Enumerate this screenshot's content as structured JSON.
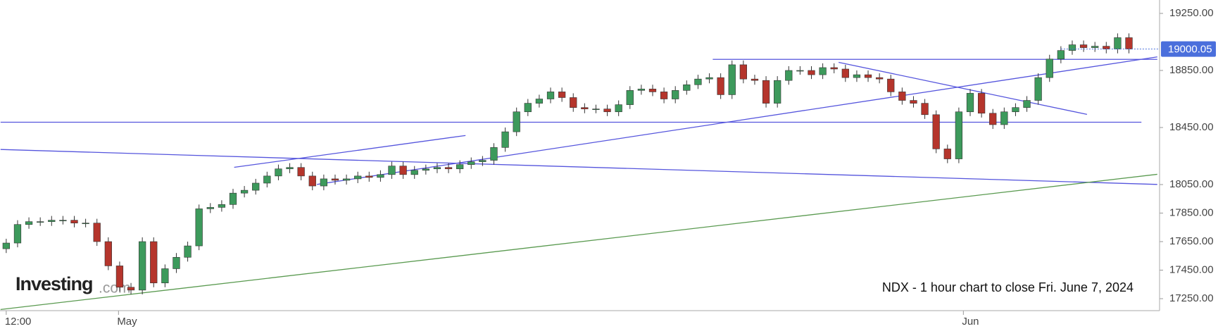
{
  "chart_data": {
    "type": "candlestick",
    "annotation": "NDX - 1 hour chart to close Fri. June 7, 2024",
    "logo": {
      "name": "Investing",
      "suffix": ".com"
    },
    "xlim": [
      -0.55,
      101.7
    ],
    "xticks": [
      {
        "value": 0,
        "label": "12:00"
      },
      {
        "value": 9.9,
        "label": "May"
      },
      {
        "value": 84.4,
        "label": "Jun"
      }
    ],
    "ylim": [
      17166,
      19344
    ],
    "yticks": [
      {
        "value": 17250,
        "label": "17250.00"
      },
      {
        "value": 17450,
        "label": "17450.00"
      },
      {
        "value": 17650,
        "label": "17650.00"
      },
      {
        "value": 17850,
        "label": "17850.00"
      },
      {
        "value": 18050,
        "label": "18050.00"
      },
      {
        "value": 18450,
        "label": "18450.00"
      },
      {
        "value": 18850,
        "label": "18850.00"
      },
      {
        "value": 19250,
        "label": "19250.00"
      }
    ],
    "last_price": 19000.05,
    "last_price_color": "#4a6fdc",
    "series": {
      "up_color": "#3d9a5c",
      "down_color": "#b5352c",
      "open": [
        17600,
        17640,
        17770,
        17790,
        17790,
        17800,
        17800,
        17780,
        17780,
        17650,
        17480,
        17330,
        17310,
        17650,
        17360,
        17460,
        17540,
        17620,
        17880,
        17890,
        17910,
        17990,
        18010,
        18060,
        18110,
        18160,
        18170,
        18110,
        18040,
        18090,
        18080,
        18090,
        18110,
        18100,
        18120,
        18180,
        18120,
        18150,
        18160,
        18170,
        18160,
        18190,
        18210,
        18220,
        18310,
        18420,
        18560,
        18620,
        18650,
        18700,
        18660,
        18590,
        18580,
        18580,
        18560,
        18610,
        18710,
        18720,
        18700,
        18650,
        18710,
        18750,
        18790,
        18800,
        18680,
        18890,
        18790,
        18780,
        18620,
        18780,
        18850,
        18850,
        18820,
        18870,
        18860,
        18800,
        18820,
        18800,
        18790,
        18700,
        18640,
        18620,
        18540,
        18300,
        18230,
        18560,
        18690,
        18550,
        18470,
        18560,
        18590,
        18640,
        18800,
        18930,
        18990,
        19030,
        19010,
        19020,
        19000,
        19080
      ],
      "high": [
        17670,
        17800,
        17820,
        17820,
        17830,
        17830,
        17830,
        17810,
        17810,
        17680,
        17510,
        17360,
        17680,
        17680,
        17490,
        17570,
        17650,
        17910,
        17920,
        17940,
        18020,
        18040,
        18090,
        18140,
        18190,
        18200,
        18200,
        18140,
        18120,
        18120,
        18120,
        18140,
        18140,
        18150,
        18210,
        18210,
        18180,
        18190,
        18200,
        18200,
        18220,
        18240,
        18250,
        18340,
        18450,
        18590,
        18650,
        18680,
        18730,
        18730,
        18690,
        18620,
        18610,
        18610,
        18640,
        18740,
        18750,
        18750,
        18730,
        18740,
        18780,
        18820,
        18830,
        18830,
        18920,
        18920,
        18820,
        18810,
        18810,
        18880,
        18880,
        18880,
        18900,
        18900,
        18890,
        18850,
        18850,
        18830,
        18820,
        18730,
        18670,
        18650,
        18570,
        18330,
        18590,
        18720,
        18720,
        18580,
        18590,
        18620,
        18670,
        18830,
        18960,
        19020,
        19060,
        19060,
        19050,
        19050,
        19110,
        19110
      ],
      "low": [
        17570,
        17610,
        17740,
        17760,
        17760,
        17770,
        17750,
        17750,
        17620,
        17450,
        17300,
        17280,
        17280,
        17330,
        17330,
        17430,
        17510,
        17590,
        17850,
        17860,
        17880,
        17960,
        17980,
        18030,
        18080,
        18130,
        18080,
        18010,
        18010,
        18050,
        18050,
        18060,
        18070,
        18070,
        18090,
        18090,
        18090,
        18120,
        18130,
        18130,
        18130,
        18160,
        18180,
        18190,
        18280,
        18390,
        18530,
        18590,
        18620,
        18630,
        18560,
        18550,
        18550,
        18530,
        18530,
        18580,
        18680,
        18670,
        18620,
        18620,
        18680,
        18720,
        18760,
        18650,
        18650,
        18760,
        18750,
        18590,
        18590,
        18750,
        18820,
        18790,
        18790,
        18830,
        18770,
        18770,
        18770,
        18760,
        18670,
        18610,
        18590,
        18510,
        18270,
        18200,
        18200,
        18530,
        18520,
        18440,
        18440,
        18530,
        18560,
        18610,
        18770,
        18900,
        18960,
        18980,
        18980,
        18970,
        18970,
        18970
      ],
      "close": [
        17640,
        17770,
        17790,
        17790,
        17800,
        17800,
        17780,
        17780,
        17650,
        17480,
        17330,
        17310,
        17650,
        17360,
        17460,
        17540,
        17620,
        17880,
        17890,
        17910,
        17990,
        18010,
        18060,
        18110,
        18160,
        18170,
        18110,
        18040,
        18090,
        18080,
        18090,
        18110,
        18100,
        18120,
        18180,
        18120,
        18150,
        18160,
        18170,
        18160,
        18190,
        18210,
        18220,
        18310,
        18420,
        18560,
        18620,
        18650,
        18700,
        18660,
        18590,
        18580,
        18580,
        18560,
        18610,
        18710,
        18720,
        18700,
        18650,
        18710,
        18750,
        18790,
        18800,
        18680,
        18890,
        18790,
        18780,
        18620,
        18780,
        18850,
        18850,
        18820,
        18870,
        18860,
        18800,
        18820,
        18800,
        18790,
        18700,
        18640,
        18620,
        18540,
        18300,
        18230,
        18560,
        18690,
        18550,
        18470,
        18560,
        18590,
        18640,
        18800,
        18930,
        18990,
        19030,
        19010,
        19020,
        19000,
        19080,
        19000.05
      ]
    },
    "trendlines": [
      {
        "x": [
          62.3,
          101.5
        ],
        "y": [
          18928,
          18928
        ],
        "color": "#5555dd"
      },
      {
        "x": [
          -0.5,
          100.1
        ],
        "y": [
          18487,
          18487
        ],
        "color": "#5555dd"
      },
      {
        "x": [
          -0.5,
          101.5
        ],
        "y": [
          18296,
          18051
        ],
        "color": "#5555dd"
      },
      {
        "x": [
          20.1,
          40.5
        ],
        "y": [
          18171,
          18394
        ],
        "color": "#5555dd"
      },
      {
        "x": [
          27.4,
          101.5
        ],
        "y": [
          18051,
          18945
        ],
        "color": "#5555dd"
      },
      {
        "x": [
          73.4,
          95.3
        ],
        "y": [
          18907,
          18542
        ],
        "color": "#5555dd"
      },
      {
        "x": [
          -0.5,
          101.5
        ],
        "y": [
          17174,
          18122
        ],
        "color": "#5a9a50"
      }
    ]
  }
}
